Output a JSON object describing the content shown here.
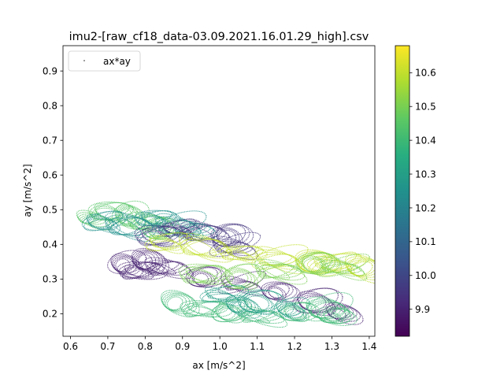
{
  "chart_data": {
    "type": "scatter",
    "title": "imu2-[raw_cf18_data-03.09.2021.16.01.29_high].csv",
    "xlabel": "ax [m/s^2]",
    "ylabel": "ay [m/s^2]",
    "xlim": [
      0.58,
      1.415
    ],
    "ylim": [
      0.135,
      0.973
    ],
    "xticks": [
      0.6,
      0.7,
      0.8,
      0.9,
      1.0,
      1.1,
      1.2,
      1.3,
      1.4
    ],
    "xtick_labels": [
      "0.6",
      "0.7",
      "0.8",
      "0.9",
      "1.0",
      "1.1",
      "1.2",
      "1.3",
      "1.4"
    ],
    "yticks": [
      0.2,
      0.3,
      0.4,
      0.5,
      0.6,
      0.7,
      0.8,
      0.9
    ],
    "ytick_labels": [
      "0.2",
      "0.3",
      "0.4",
      "0.5",
      "0.6",
      "0.7",
      "0.8",
      "0.9"
    ],
    "legend": {
      "label": "ax*ay",
      "placement": "upper-left"
    },
    "colorbar": {
      "colormap": "viridis",
      "range": [
        9.82,
        10.68
      ],
      "ticks": [
        9.9,
        10.0,
        10.1,
        10.2,
        10.3,
        10.4,
        10.5,
        10.6
      ],
      "tick_labels": [
        "9.9",
        "10.0",
        "10.1",
        "10.2",
        "10.3",
        "10.4",
        "10.5",
        "10.6"
      ]
    },
    "clusters": [
      {
        "c_value": 10.45,
        "points": [
          [
            0.65,
            0.47
          ],
          [
            0.7,
            0.49
          ],
          [
            0.75,
            0.48
          ],
          [
            0.8,
            0.46
          ],
          [
            0.83,
            0.44
          ]
        ]
      },
      {
        "c_value": 10.25,
        "points": [
          [
            0.68,
            0.46
          ],
          [
            0.75,
            0.45
          ],
          [
            0.82,
            0.47
          ],
          [
            0.88,
            0.45
          ],
          [
            0.92,
            0.44
          ]
        ]
      },
      {
        "c_value": 9.95,
        "points": [
          [
            0.83,
            0.42
          ],
          [
            0.88,
            0.44
          ],
          [
            0.95,
            0.43
          ],
          [
            1.02,
            0.42
          ],
          [
            1.03,
            0.39
          ]
        ]
      },
      {
        "c_value": 9.9,
        "points": [
          [
            0.8,
            0.35
          ],
          [
            0.78,
            0.32
          ],
          [
            0.74,
            0.34
          ],
          [
            0.85,
            0.33
          ],
          [
            0.95,
            0.3
          ],
          [
            1.05,
            0.28
          ],
          [
            1.15,
            0.26
          ],
          [
            1.25,
            0.23
          ],
          [
            1.32,
            0.2
          ]
        ]
      },
      {
        "c_value": 10.6,
        "points": [
          [
            0.85,
            0.4
          ],
          [
            0.95,
            0.39
          ],
          [
            1.05,
            0.37
          ],
          [
            1.15,
            0.355
          ],
          [
            1.25,
            0.345
          ],
          [
            1.3,
            0.34
          ],
          [
            1.38,
            0.33
          ]
        ]
      },
      {
        "c_value": 10.5,
        "points": [
          [
            0.95,
            0.31
          ],
          [
            1.05,
            0.3
          ],
          [
            1.15,
            0.32
          ],
          [
            1.25,
            0.34
          ],
          [
            1.32,
            0.33
          ]
        ]
      },
      {
        "c_value": 10.4,
        "points": [
          [
            0.88,
            0.23
          ],
          [
            0.95,
            0.21
          ],
          [
            1.02,
            0.2
          ],
          [
            1.1,
            0.19
          ],
          [
            1.2,
            0.2
          ],
          [
            1.28,
            0.21
          ],
          [
            1.3,
            0.19
          ]
        ]
      },
      {
        "c_value": 10.3,
        "points": [
          [
            1.0,
            0.25
          ],
          [
            1.05,
            0.22
          ],
          [
            1.1,
            0.23
          ],
          [
            1.18,
            0.21
          ]
        ]
      }
    ]
  }
}
